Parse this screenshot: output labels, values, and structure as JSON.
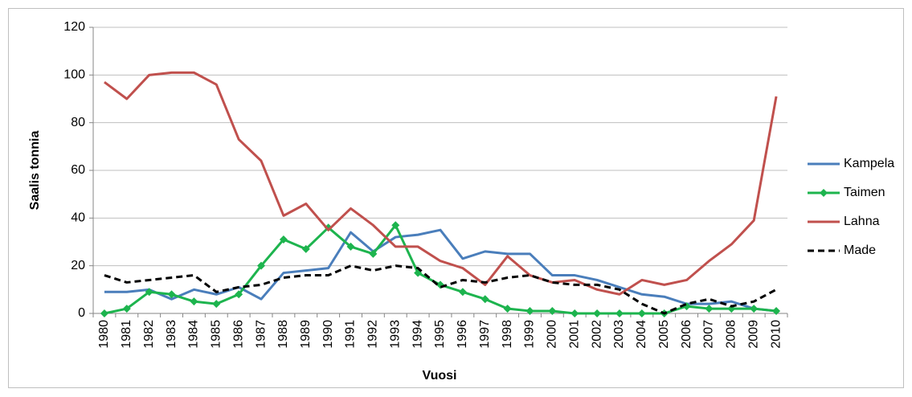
{
  "chart_data": {
    "type": "line",
    "x_label": "Vuosi",
    "y_label": "Saalis tonnia",
    "categories": [
      "1980",
      "1981",
      "1982",
      "1983",
      "1984",
      "1985",
      "1986",
      "1987",
      "1988",
      "1989",
      "1990",
      "1991",
      "1992",
      "1993",
      "1994",
      "1995",
      "1996",
      "1997",
      "1998",
      "1999",
      "2000",
      "2001",
      "2002",
      "2003",
      "2004",
      "2005",
      "2006",
      "2007",
      "2008",
      "2009",
      "2010"
    ],
    "series": [
      {
        "name": "Kampela",
        "color": "#4a7ebb",
        "values": [
          9,
          9,
          10,
          6,
          10,
          8,
          11,
          6,
          17,
          18,
          19,
          34,
          26,
          32,
          33,
          35,
          23,
          26,
          25,
          25,
          16,
          16,
          14,
          11,
          8,
          7,
          4,
          4,
          5,
          2,
          1
        ]
      },
      {
        "name": "Taimen",
        "color": "#1db44e",
        "marker": "diamond",
        "values": [
          0,
          2,
          9,
          8,
          5,
          4,
          8,
          20,
          31,
          27,
          36,
          28,
          25,
          37,
          17,
          12,
          9,
          6,
          2,
          1,
          1,
          0,
          0,
          0,
          0,
          0,
          3,
          2,
          2,
          2,
          1
        ]
      },
      {
        "name": "Lahna",
        "color": "#c0504d",
        "values": [
          97,
          90,
          100,
          101,
          101,
          96,
          73,
          64,
          41,
          46,
          35,
          44,
          37,
          28,
          28,
          22,
          19,
          12,
          24,
          16,
          13,
          14,
          10,
          8,
          14,
          12,
          14,
          22,
          29,
          39,
          91
        ]
      },
      {
        "name": "Made",
        "color": "#000000",
        "dashed": true,
        "values": [
          16,
          13,
          14,
          15,
          16,
          9,
          11,
          12,
          15,
          16,
          16,
          20,
          18,
          20,
          19,
          11,
          14,
          13,
          15,
          16,
          13,
          12,
          12,
          10,
          4,
          0,
          4,
          6,
          3,
          5,
          10
        ]
      }
    ],
    "ylim": [
      0,
      120
    ],
    "yticks": [
      0,
      20,
      40,
      60,
      80,
      100,
      120
    ],
    "grid": true,
    "legend": "right"
  }
}
